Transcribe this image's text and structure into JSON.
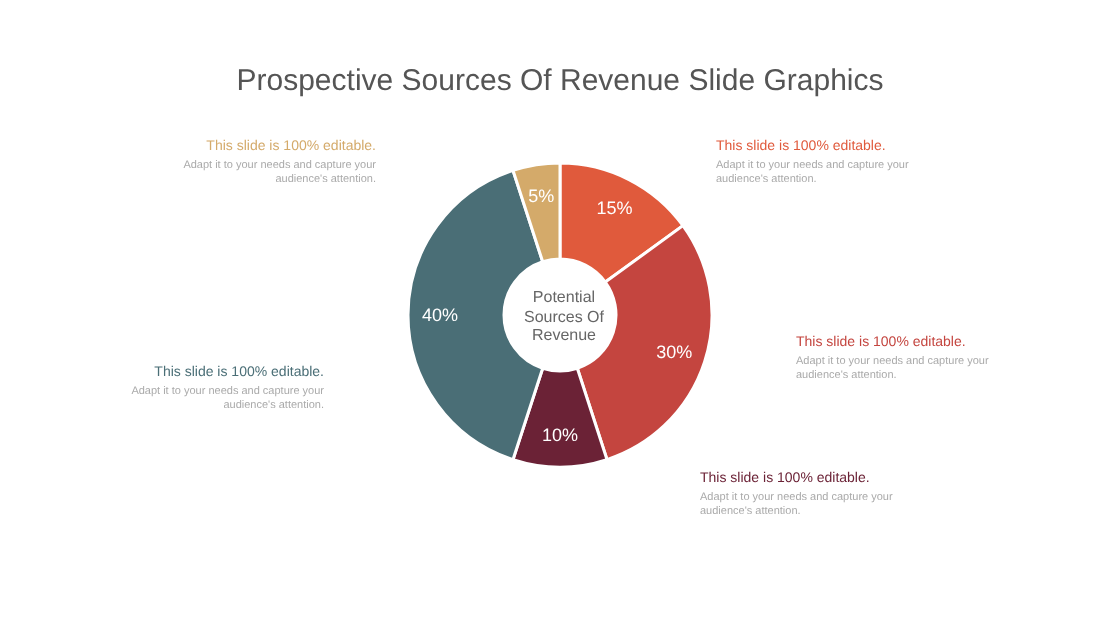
{
  "chart_data": {
    "type": "donut",
    "title": "Prospective Sources Of Revenue Slide Graphics",
    "categories": [
      null,
      null,
      null,
      null,
      null
    ],
    "values": [
      15,
      30,
      10,
      40,
      5
    ],
    "value_labels": [
      "15%",
      "30%",
      "10%",
      "40%",
      "5%"
    ],
    "colors": [
      "#e05a3c",
      "#c4453f",
      "#6b2236",
      "#4a6e76",
      "#d4aa6a"
    ],
    "legend": false,
    "annotations": [
      "Potential\nSources Of\nRevenue",
      "This slide is 100% editable.\nAdapt it to your needs and capture your audience's attention.",
      "This slide is 100% editable.\nAdapt it to your needs and capture your audience's attention.",
      "This slide is 100% editable.\nAdapt it to your needs and capture your audience's attention.",
      "This slide is 100% editable.\nAdapt it to your needs and capture your audience's attention.",
      "This slide is 100% editable.\nAdapt it to your needs and capture your audience's attention."
    ]
  }
}
